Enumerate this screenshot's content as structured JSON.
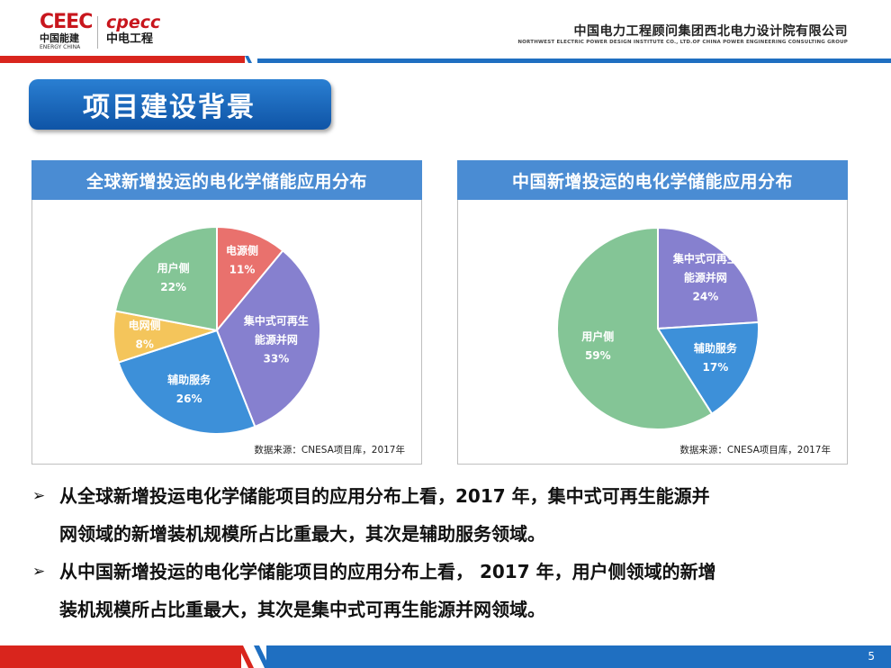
{
  "header": {
    "logo_left_mark": "CEEC",
    "logo_left_cn": "中国能建",
    "logo_left_en": "ENERGY CHINA",
    "logo_right_mark": "cpecc",
    "logo_right_cn": "中电工程",
    "company_cn": "中国电力工程顾问集团西北电力设计院有限公司",
    "company_en": "NORTHWEST ELECTRIC POWER DESIGN INSTITUTE CO., LTD.OF CHINA POWER ENGINEERING CONSULTING GROUP"
  },
  "section_title": "项目建设背景",
  "colors": {
    "red": "#e9716d",
    "purple": "#8680cf",
    "blue": "#3d90d9",
    "yellow": "#f4c55b",
    "green": "#84c596"
  },
  "chart_data": [
    {
      "type": "pie",
      "title": "全球新增投运的电化学储能应用分布",
      "source": "数据来源：CNESA项目库，2017年",
      "slices": [
        {
          "label_lines": [
            "电源侧"
          ],
          "value": 11,
          "value_label": "11%",
          "color": "#e9716d"
        },
        {
          "label_lines": [
            "集中式可再生",
            "能源并网"
          ],
          "value": 33,
          "value_label": "33%",
          "color": "#8680cf"
        },
        {
          "label_lines": [
            "辅助服务"
          ],
          "value": 26,
          "value_label": "26%",
          "color": "#3d90d9"
        },
        {
          "label_lines": [
            "电网侧"
          ],
          "value": 8,
          "value_label": "8%",
          "color": "#f4c55b"
        },
        {
          "label_lines": [
            "用户侧"
          ],
          "value": 22,
          "value_label": "22%",
          "color": "#84c596"
        }
      ]
    },
    {
      "type": "pie",
      "title": "中国新增投运的电化学储能应用分布",
      "source": "数据来源：CNESA项目库，2017年",
      "slices": [
        {
          "label_lines": [
            "集中式可再生",
            "能源并网"
          ],
          "value": 24,
          "value_label": "24%",
          "color": "#8680cf"
        },
        {
          "label_lines": [
            "辅助服务"
          ],
          "value": 17,
          "value_label": "17%",
          "color": "#3d90d9"
        },
        {
          "label_lines": [
            "用户侧"
          ],
          "value": 59,
          "value_label": "59%",
          "color": "#84c596"
        }
      ]
    }
  ],
  "bullets": [
    {
      "arrow": "➢",
      "line1": "从全球新增投运电化学储能项目的应用分布上看，2017 年，集中式可再生能源并",
      "line2": "网领域的新增装机规模所占比重最大，其次是辅助服务领域。"
    },
    {
      "arrow": "➢",
      "line1": "从中国新增投运的电化学储能项目的应用分布上看， 2017 年，用户侧领域的新增",
      "line2": "装机规模所占比重最大，其次是集中式可再生能源并网领域。"
    }
  ],
  "page_number": "5"
}
